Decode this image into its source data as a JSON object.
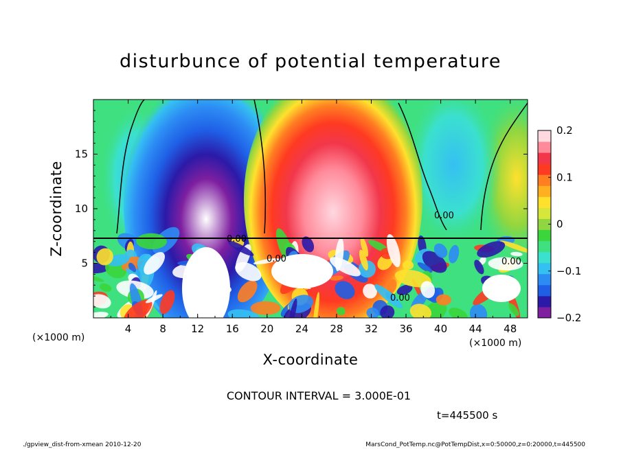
{
  "chart_data": {
    "type": "heatmap",
    "title": "disturbunce of potential temperature",
    "xlabel": "X-coordinate",
    "ylabel": "Z-coordinate",
    "x_unit": "(×1000 m)",
    "xlim": [
      0,
      50
    ],
    "ylim": [
      0,
      20
    ],
    "x_ticks": [
      4,
      8,
      12,
      16,
      20,
      24,
      28,
      32,
      36,
      40,
      44,
      48
    ],
    "y_ticks": [
      5,
      10,
      15
    ],
    "colorbar": {
      "ticks": [
        0.2,
        0.1,
        0,
        -0.1,
        -0.2
      ],
      "tick_labels": [
        "0.2",
        "0.1",
        "0",
        "−0.1",
        "−0.2"
      ],
      "range": [
        -0.2,
        0.2
      ],
      "colors": [
        "#7e1fa0",
        "#2b1aa8",
        "#1f5fe6",
        "#2d8cf4",
        "#35c0f2",
        "#3be0cf",
        "#3ee080",
        "#3bd63b",
        "#8fd640",
        "#d7e63a",
        "#ffe12d",
        "#ffb020",
        "#ff7e22",
        "#ff3a22",
        "#f2374b",
        "#ff8a9a",
        "#ffd8e0"
      ]
    },
    "contour_labels": [
      "0.00",
      "0.00",
      "0.00",
      "0.00",
      "0.00"
    ],
    "contour_interval": "CONTOUR INTERVAL = 3.000E-01"
  },
  "annotations": {
    "time": "t=445500 s",
    "footer_left": "./gpview_dist-from-xmean  2010-12-20",
    "footer_right": "MarsCond_PotTemp.nc@PotTempDist,x=0:50000,z=0:20000,t=445500"
  }
}
